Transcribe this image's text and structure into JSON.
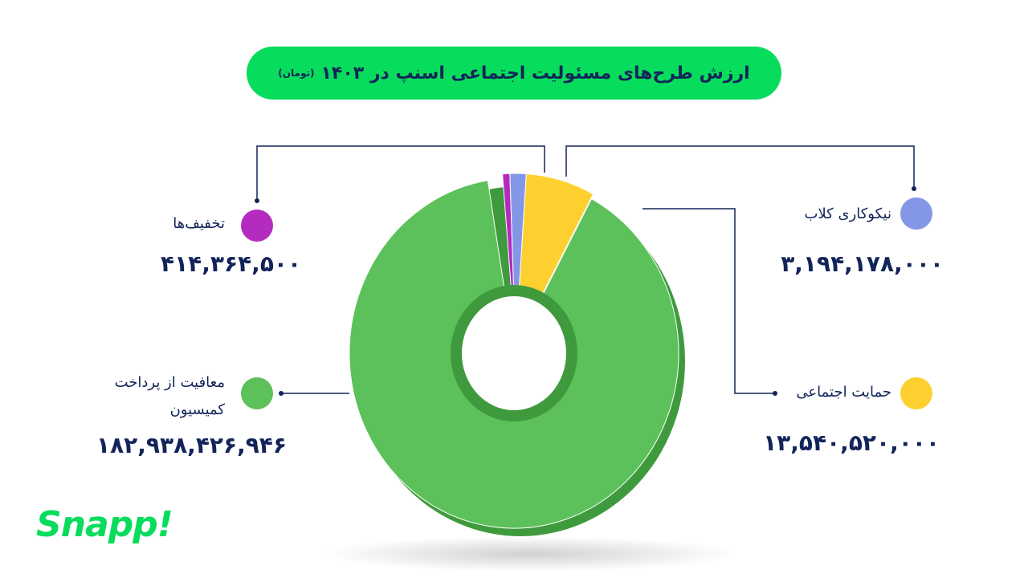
{
  "chart_data": {
    "type": "pie",
    "subtype": "donut-3d",
    "title": "ارزش طرح‌های مسئولیت اجتماعی اسنپ در ۱۴۰۳",
    "unit": "(تومان)",
    "legend_placement": "around",
    "slices": [
      {
        "name": "تخفیف‌ها",
        "value": 414364500,
        "label": "۴۱۴,۳۶۴,۵۰۰",
        "color": "#b42bbf"
      },
      {
        "name": "نیکوکاری کلاب",
        "value": 3194178000,
        "label": "۳,۱۹۴,۱۷۸,۰۰۰",
        "color": "#8497e6"
      },
      {
        "name": "حمایت اجتماعی",
        "value": 13540520000,
        "label": "۱۳,۵۴۰,۵۲۰,۰۰۰",
        "color": "#fdd02f"
      },
      {
        "name": "معافیت از پرداخت کمیسیون",
        "value": 182938426946,
        "label": "۱۸۲,۹۳۸,۴۲۶,۹۴۶",
        "color": "#5cc15a"
      }
    ]
  },
  "brand": {
    "logo": "Snapp!",
    "color": "#08dc5c"
  }
}
